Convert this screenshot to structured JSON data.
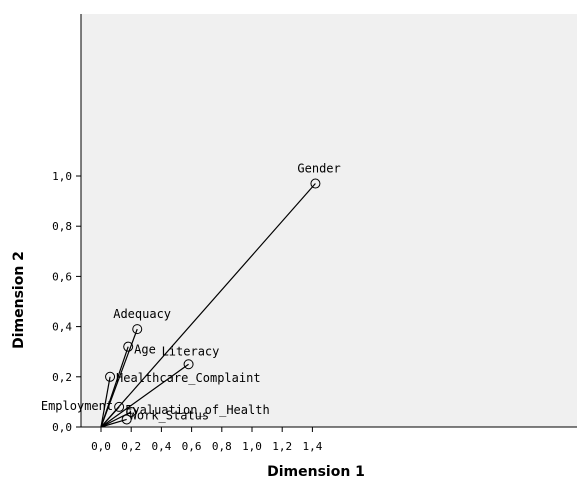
{
  "chart_data": {
    "type": "scatter",
    "title": "",
    "xlabel": "Dimension 1",
    "ylabel": "Dimension 2",
    "xlim": [
      -0.1,
      1.58
    ],
    "ylim": [
      0,
      1.62
    ],
    "xticks": [
      "0,0",
      "0,2",
      "0,4",
      "0,6",
      "0,8",
      "1,0",
      "1,2",
      "1,4"
    ],
    "yticks": [
      "0,0",
      "0,2",
      "0,4",
      "0,6",
      "0,8",
      "1,0"
    ],
    "xtick_values": [
      0,
      0.2,
      0.4,
      0.6,
      0.8,
      1.0,
      1.2,
      1.4
    ],
    "ytick_values": [
      0,
      0.2,
      0.4,
      0.6,
      0.8,
      1.0
    ],
    "grid": false,
    "vectors_from_origin": true,
    "colors": {
      "plot_background": "#f0f0f0",
      "lines": "#000000"
    },
    "points": [
      {
        "label": "Gender",
        "x": 1.42,
        "y": 0.97
      },
      {
        "label": "Adequacy",
        "x": 0.24,
        "y": 0.39
      },
      {
        "label": "Age",
        "x": 0.18,
        "y": 0.32
      },
      {
        "label": "Literacy",
        "x": 0.58,
        "y": 0.25
      },
      {
        "label": "Healthcare_Complaint",
        "x": 0.06,
        "y": 0.2
      },
      {
        "label": "Evaluation_of_Health",
        "x": 0.2,
        "y": 0.06
      },
      {
        "label": "Employment",
        "x": 0.12,
        "y": 0.08
      },
      {
        "label": "Work_Status",
        "x": 0.17,
        "y": 0.03
      }
    ]
  }
}
